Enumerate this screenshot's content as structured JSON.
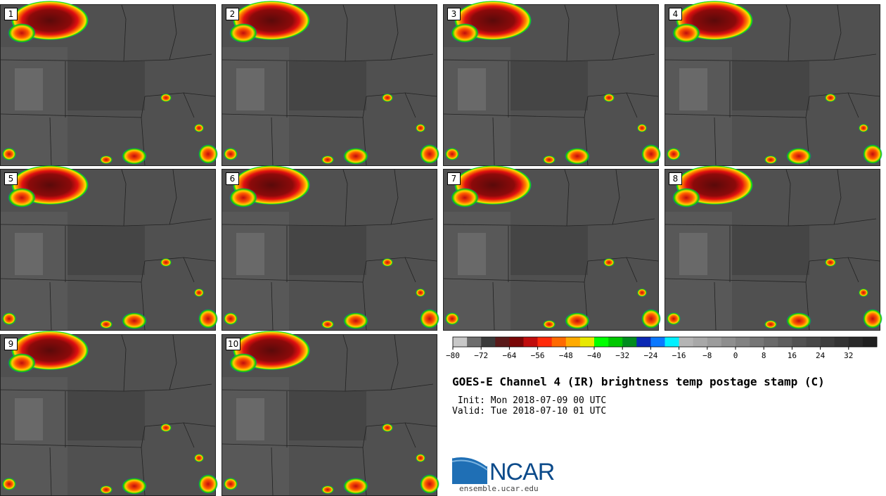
{
  "panels": [
    "1",
    "2",
    "3",
    "4",
    "5",
    "6",
    "7",
    "8",
    "9",
    "10"
  ],
  "colorbar": {
    "colors": [
      "#c8c8c8",
      "#6e6e6e",
      "#3a3a3a",
      "#5a1a1a",
      "#7a0606",
      "#c00d0d",
      "#ff2a0a",
      "#ff6a00",
      "#ffaa00",
      "#e8e800",
      "#00ff00",
      "#00c800",
      "#008c1e",
      "#0a28b4",
      "#0a78ff",
      "#00f0ff",
      "#b4b4b4",
      "#a8a8a8",
      "#9c9c9c",
      "#8e8e8e",
      "#828282",
      "#767676",
      "#6a6a6a",
      "#5e5e5e",
      "#525252",
      "#484848",
      "#3e3e3e",
      "#343434",
      "#2a2a2a",
      "#202020"
    ],
    "ticks": [
      "−80",
      "−72",
      "−64",
      "−56",
      "−48",
      "−40",
      "−32",
      "−24",
      "−16",
      "−8",
      "0",
      "8",
      "16",
      "24",
      "32"
    ]
  },
  "title": "GOES-E Channel 4 (IR) brightness temp postage stamp (C)",
  "init_line": " Init: Mon 2018-07-09 00 UTC",
  "valid_line": "Valid: Tue 2018-07-10 01 UTC",
  "logo": {
    "text": "NCAR",
    "url": "ensemble.ucar.edu"
  }
}
